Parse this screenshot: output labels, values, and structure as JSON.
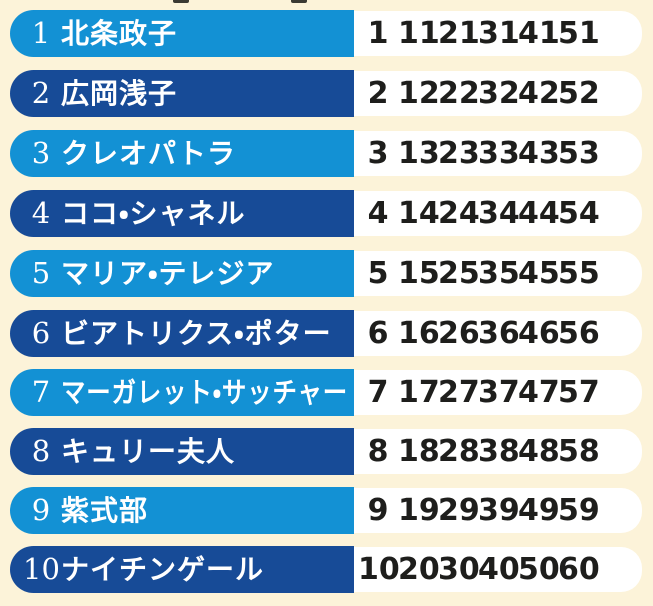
{
  "page": {
    "background_color": "#fcf3d9",
    "row_color_light": "#1391d4",
    "row_color_dark": "#174b97",
    "name_text_color": "#ffffff",
    "number_text_color": "#1e1e1c",
    "panel_color": "#ffffff"
  },
  "rows": [
    {
      "index": "1",
      "name": "北条政子",
      "values": [
        "1",
        "11",
        "21",
        "31",
        "41",
        "51"
      ]
    },
    {
      "index": "2",
      "name": "広岡浅子",
      "values": [
        "2",
        "12",
        "22",
        "32",
        "42",
        "52"
      ]
    },
    {
      "index": "3",
      "name": "クレオパトラ",
      "values": [
        "3",
        "13",
        "23",
        "33",
        "43",
        "53"
      ]
    },
    {
      "index": "4",
      "name": "ココ・シャネル",
      "values": [
        "4",
        "14",
        "24",
        "34",
        "44",
        "54"
      ]
    },
    {
      "index": "5",
      "name": "マリア・テレジア",
      "values": [
        "5",
        "15",
        "25",
        "35",
        "45",
        "55"
      ]
    },
    {
      "index": "6",
      "name": "ビアトリクス・ポター",
      "values": [
        "6",
        "16",
        "26",
        "36",
        "46",
        "56"
      ]
    },
    {
      "index": "7",
      "name": "マーガレット・サッチャー",
      "values": [
        "7",
        "17",
        "27",
        "37",
        "47",
        "57"
      ]
    },
    {
      "index": "8",
      "name": "キュリー夫人",
      "values": [
        "8",
        "18",
        "28",
        "38",
        "48",
        "58"
      ]
    },
    {
      "index": "9",
      "name": "紫式部",
      "values": [
        "9",
        "19",
        "29",
        "39",
        "49",
        "59"
      ]
    },
    {
      "index": "10",
      "name": "ナイチンゲール",
      "values": [
        "10",
        "20",
        "30",
        "40",
        "50",
        "60"
      ]
    }
  ]
}
